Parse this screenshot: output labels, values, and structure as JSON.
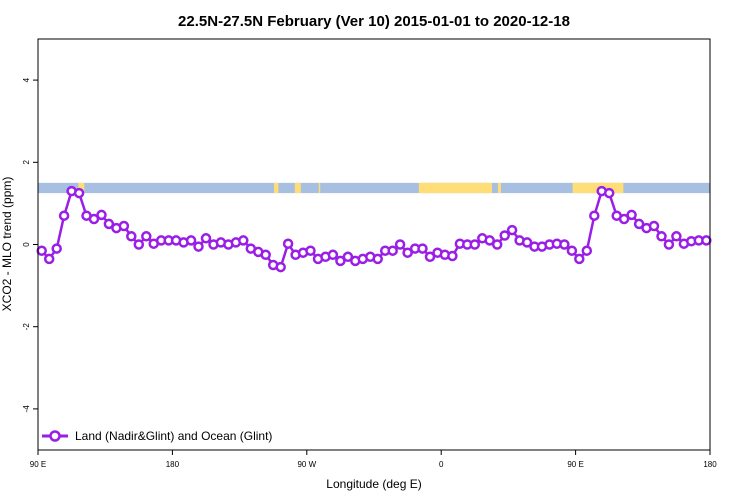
{
  "chart_data": {
    "type": "line",
    "title": "22.5N-27.5N February (Ver 10)   2015-01-01 to 2020-12-18",
    "xlabel": "Longitude (deg E)",
    "ylabel": "XCO2 - MLO trend (ppm)",
    "xlim": [
      90,
      540
    ],
    "ylim": [
      -5,
      5
    ],
    "x_ticks": [
      {
        "value": 90,
        "label": "90 E"
      },
      {
        "value": 180,
        "label": "180"
      },
      {
        "value": 270,
        "label": "90 W"
      },
      {
        "value": 360,
        "label": "0"
      },
      {
        "value": 450,
        "label": "90 E"
      },
      {
        "value": 540,
        "label": "180"
      }
    ],
    "y_ticks": [
      {
        "value": -4,
        "label": "-4"
      },
      {
        "value": -2,
        "label": "-2"
      },
      {
        "value": 0,
        "label": "0"
      },
      {
        "value": 2,
        "label": "2"
      },
      {
        "value": 4,
        "label": "4"
      }
    ],
    "grid": false,
    "legend_position": "bottom-left",
    "land_ocean_band": {
      "y_range": [
        1.25,
        1.5
      ],
      "ocean_color": "#a7bfe0",
      "land_color": "#ffdd77",
      "land_segments": [
        [
          117,
          121
        ],
        [
          248,
          251
        ],
        [
          262,
          266
        ],
        [
          278,
          279
        ],
        [
          345,
          394
        ],
        [
          398,
          400
        ],
        [
          448,
          482
        ]
      ]
    },
    "series": [
      {
        "name": "Land (Nadir&Glint) and Ocean (Glint)",
        "color": "#9a1ee6",
        "x": [
          92.5,
          97.5,
          102.5,
          107.5,
          112.5,
          117.5,
          122.5,
          127.5,
          132.5,
          137.5,
          142.5,
          147.5,
          152.5,
          157.5,
          162.5,
          167.5,
          172.5,
          177.5,
          182.5,
          187.5,
          192.5,
          197.5,
          202.5,
          207.5,
          212.5,
          217.5,
          222.5,
          227.5,
          232.5,
          237.5,
          242.5,
          247.5,
          252.5,
          257.5,
          262.5,
          267.5,
          272.5,
          277.5,
          282.5,
          287.5,
          292.5,
          297.5,
          302.5,
          307.5,
          312.5,
          317.5,
          322.5,
          327.5,
          332.5,
          337.5,
          342.5,
          347.5,
          352.5,
          357.5,
          362.5,
          367.5,
          372.5,
          377.5,
          382.5,
          387.5,
          392.5,
          397.5,
          402.5,
          407.5,
          412.5,
          417.5,
          422.5,
          427.5,
          432.5,
          437.5,
          442.5,
          447.5,
          452.5,
          457.5,
          462.5,
          467.5,
          472.5,
          477.5,
          482.5,
          487.5,
          492.5,
          497.5,
          502.5,
          507.5,
          512.5,
          517.5,
          522.5,
          527.5,
          532.5,
          537.5
        ],
        "y": [
          -0.15,
          -0.35,
          -0.1,
          0.7,
          1.3,
          1.25,
          0.7,
          0.62,
          0.72,
          0.5,
          0.4,
          0.45,
          0.2,
          0.0,
          0.2,
          0.02,
          0.1,
          0.1,
          0.1,
          0.05,
          0.1,
          -0.05,
          0.15,
          0.0,
          0.05,
          0.0,
          0.05,
          0.1,
          -0.1,
          -0.18,
          -0.25,
          -0.5,
          -0.55,
          0.02,
          -0.25,
          -0.2,
          -0.15,
          -0.35,
          -0.3,
          -0.25,
          -0.4,
          -0.3,
          -0.4,
          -0.35,
          -0.3,
          -0.35,
          -0.15,
          -0.15,
          0.0,
          -0.2,
          -0.1,
          -0.1,
          -0.3,
          -0.2,
          -0.25,
          -0.28,
          0.02,
          0.0,
          0.0,
          0.15,
          0.1,
          0.0,
          0.22,
          0.35,
          0.1,
          0.05,
          -0.05,
          -0.05,
          0.0,
          0.02,
          0.0,
          -0.15,
          -0.35,
          -0.15,
          0.7,
          1.3,
          1.25,
          0.7,
          0.62,
          0.72,
          0.5,
          0.4,
          0.45,
          0.2,
          0.0,
          0.2,
          0.02,
          0.08,
          0.1,
          0.1
        ]
      }
    ]
  }
}
